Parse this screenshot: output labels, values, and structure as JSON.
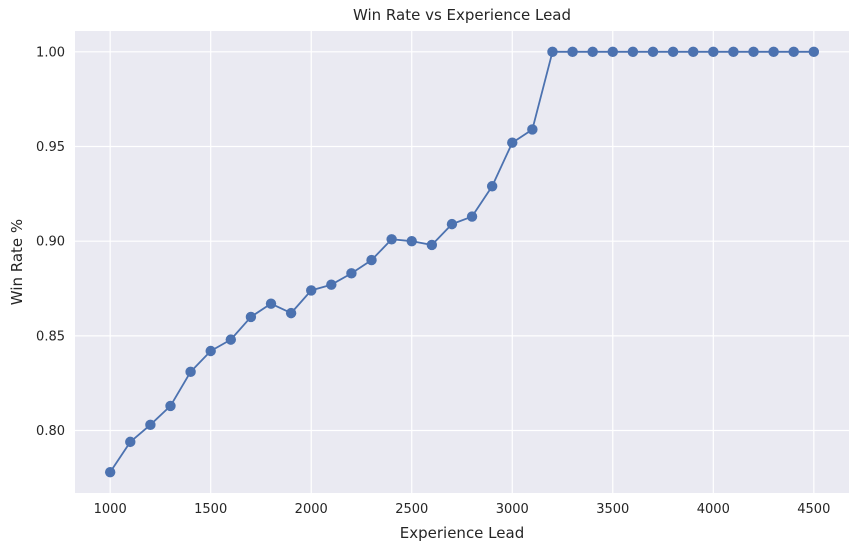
{
  "colors": {
    "plot_background": "#eaeaf2",
    "grid": "#ffffff",
    "series": "#4c72b0",
    "text": "#262626"
  },
  "chart_data": {
    "type": "line",
    "title": "Win Rate vs Experience Lead",
    "xlabel": "Experience Lead",
    "ylabel": "Win Rate %",
    "xlim": [
      825,
      4675
    ],
    "ylim": [
      0.767,
      1.011
    ],
    "xticks": [
      1000,
      1500,
      2000,
      2500,
      3000,
      3500,
      4000,
      4500
    ],
    "xtick_labels": [
      "1000",
      "1500",
      "2000",
      "2500",
      "3000",
      "3500",
      "4000",
      "4500"
    ],
    "yticks": [
      0.8,
      0.85,
      0.9,
      0.95,
      1.0
    ],
    "ytick_labels": [
      "0.80",
      "0.85",
      "0.90",
      "0.95",
      "1.00"
    ],
    "grid": true,
    "marker": "circle",
    "series": [
      {
        "x": [
          1000,
          1100,
          1200,
          1300,
          1400,
          1500,
          1600,
          1700,
          1800,
          1900,
          2000,
          2100,
          2200,
          2300,
          2400,
          2500,
          2600,
          2700,
          2800,
          2900,
          3000,
          3100,
          3200,
          3300,
          3400,
          3500,
          3600,
          3700,
          3800,
          3900,
          4000,
          4100,
          4200,
          4300,
          4400,
          4500
        ],
        "y": [
          0.778,
          0.794,
          0.803,
          0.813,
          0.831,
          0.842,
          0.848,
          0.86,
          0.867,
          0.862,
          0.874,
          0.877,
          0.883,
          0.89,
          0.901,
          0.9,
          0.898,
          0.909,
          0.913,
          0.929,
          0.952,
          0.959,
          1.0,
          1.0,
          1.0,
          1.0,
          1.0,
          1.0,
          1.0,
          1.0,
          1.0,
          1.0,
          1.0,
          1.0,
          1.0,
          1.0
        ]
      }
    ]
  }
}
